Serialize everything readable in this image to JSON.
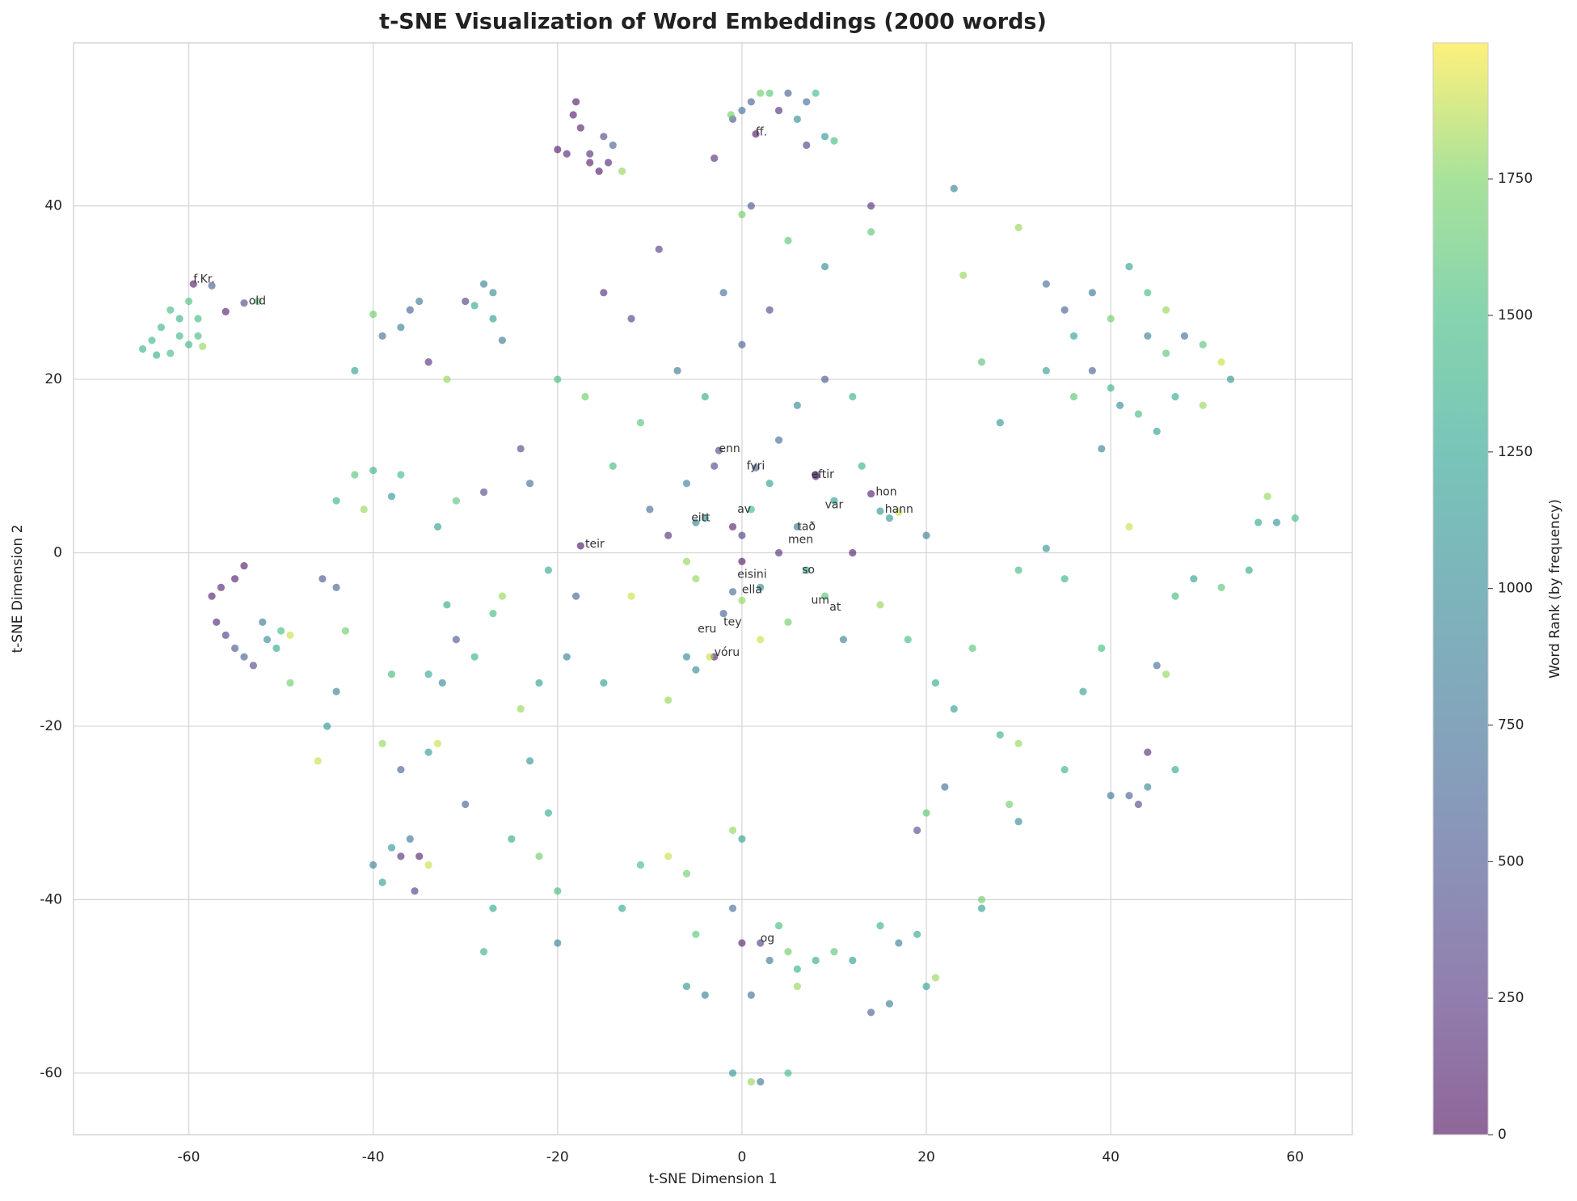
{
  "chart_data": {
    "type": "scatter",
    "title": "t-SNE Visualization of Word Embeddings (2000 words)",
    "x_label": "t-SNE Dimension 1",
    "y_label": "t-SNE Dimension 2",
    "colorbar_label": "Word Rank (by frequency)",
    "colormap": "viridis",
    "alpha": 0.6,
    "grid": true,
    "xlim": [
      -72.5,
      66.2
    ],
    "ylim": [
      -67.1,
      58.8
    ],
    "xticks": [
      -60,
      -40,
      -20,
      0,
      20,
      40,
      60
    ],
    "yticks": [
      -60,
      -40,
      -20,
      0,
      20,
      40
    ],
    "clim": [
      0,
      1999
    ],
    "cticks": [
      0,
      250,
      500,
      750,
      1000,
      1250,
      1500,
      1750
    ],
    "x": [
      -65,
      -64,
      -63,
      -62,
      -61,
      -60,
      -61,
      -62,
      -59,
      -60,
      -63.5,
      -59,
      -58.5,
      -59.5,
      -57.5,
      -56,
      -54,
      -52.5,
      -57.5,
      -56.5,
      -55,
      -54,
      -57,
      -56,
      -55,
      -54,
      -53,
      -51.5,
      -50,
      -49,
      -50.5,
      -52,
      -49,
      -46,
      -45,
      -44,
      -43,
      -44,
      -45.5,
      -44,
      -42,
      -41,
      -40,
      -38,
      -37,
      -42,
      -40,
      -39,
      -37,
      -36,
      -35,
      -34,
      -32,
      -30,
      -29,
      -28,
      -27,
      -27,
      -26,
      -38,
      -39,
      -37,
      -34,
      -33,
      -40,
      -39,
      -38,
      -37,
      -36,
      -35,
      -35.5,
      -34,
      -34,
      -32,
      -31,
      -32.5,
      -33,
      -31,
      -29,
      -27,
      -28,
      -30,
      -28,
      -27,
      -24,
      -22,
      -23,
      -21,
      -22,
      -20,
      -20,
      -25,
      -19,
      -18,
      -18,
      -18.3,
      -17.5,
      -16.5,
      -15,
      -14,
      -15.5,
      -16.5,
      -14.5,
      -20,
      -19,
      -13,
      -1,
      0,
      1,
      2,
      3,
      5,
      6,
      7,
      8,
      9,
      1.5,
      -3,
      -1.2,
      10,
      4,
      7,
      -10,
      -8,
      -6,
      -5,
      -4,
      -3,
      -2,
      -1,
      0,
      0,
      1,
      2,
      3,
      4,
      5,
      6,
      7,
      8,
      9,
      10,
      11,
      12,
      13,
      15,
      16,
      18,
      20,
      21,
      -12,
      -14,
      -15,
      -11,
      -8,
      -6,
      -3,
      2,
      4,
      6,
      9,
      12,
      -7,
      -4,
      0,
      3,
      -2,
      0,
      1,
      5,
      9,
      14,
      14,
      -12,
      -15,
      -9,
      -17,
      -20,
      -21,
      -23,
      -24,
      -26,
      -6,
      -5,
      -3.5,
      -17.5,
      -2.5,
      1.5,
      8,
      14,
      15,
      17,
      -5,
      -1,
      0,
      33,
      35,
      36,
      38,
      40,
      42,
      44,
      46,
      48,
      50,
      52,
      53,
      41,
      43,
      45,
      47,
      39,
      42,
      46,
      30,
      23,
      24,
      26,
      28,
      33,
      36,
      38,
      40,
      44,
      50,
      56,
      57,
      58,
      60,
      55,
      52,
      49,
      47,
      46,
      45,
      44,
      47,
      42,
      43,
      44,
      40,
      39,
      37,
      35,
      30,
      29,
      30,
      28,
      25,
      23,
      22,
      19,
      20,
      26,
      26,
      30,
      33,
      35,
      0,
      2,
      4,
      5,
      6,
      8,
      10,
      3,
      6,
      12,
      15,
      17,
      19,
      20,
      21,
      14,
      16,
      -1,
      1,
      -5,
      -6,
      -4,
      -13,
      -11,
      -8,
      -6,
      -1,
      0,
      -1,
      1,
      2,
      5
    ],
    "values": [
      23.5,
      24.5,
      26,
      28,
      27,
      29,
      25,
      23,
      27,
      24,
      22.8,
      25,
      23.8,
      31,
      30.8,
      27.8,
      28.8,
      29,
      -5,
      -4,
      -3,
      -1.5,
      -8,
      -9.5,
      -11,
      -12,
      -13,
      -10,
      -9,
      -9.5,
      -11,
      -8,
      -15,
      -24,
      -20,
      -16,
      -9,
      -4,
      -3,
      6,
      9,
      5,
      9.5,
      6.5,
      9,
      21,
      27.5,
      25,
      26,
      28,
      29,
      22,
      20,
      29,
      28.5,
      31,
      30,
      27,
      24.5,
      -14,
      -22,
      -25,
      -23,
      -22,
      -36,
      -38,
      -34,
      -35,
      -33,
      -35,
      -39,
      -36,
      -14,
      -6,
      -10,
      -15,
      3,
      6,
      -12,
      -7,
      7,
      -29,
      -46,
      -41,
      -18,
      -15,
      -24,
      -30,
      -35,
      -39,
      -45,
      -33,
      -12,
      -5,
      52,
      50.5,
      49,
      46,
      48,
      47,
      44,
      45,
      45,
      46.5,
      46,
      44,
      50,
      51,
      52,
      53,
      53,
      53,
      50,
      52,
      53,
      48,
      48.3,
      45.5,
      50.5,
      47.5,
      51,
      47,
      5,
      2,
      8,
      -3,
      4,
      10,
      -7,
      3,
      -1,
      2,
      5,
      -4,
      8,
      0,
      -8,
      3,
      -2,
      9,
      -5,
      6,
      -10,
      0,
      10,
      -6,
      4,
      -10,
      2,
      -15,
      -5,
      10,
      -15,
      15,
      -17,
      -12,
      -12,
      -10,
      13,
      17,
      20,
      18,
      21,
      18,
      24,
      28,
      30,
      39,
      40,
      36,
      33,
      37,
      40,
      27,
      30,
      35,
      18,
      20,
      -2,
      8,
      12,
      -5,
      -1,
      -13.5,
      -12,
      0.8,
      11.8,
      9.8,
      8.8,
      6.8,
      4.8,
      4.7,
      3.5,
      -4.5,
      -5.5,
      31,
      28,
      25,
      30,
      27,
      33,
      30,
      28,
      25,
      24,
      22,
      20,
      17,
      16,
      14,
      18,
      12,
      3,
      23,
      37.5,
      42,
      32,
      22,
      15,
      21,
      18,
      21,
      19,
      25,
      17,
      3.5,
      6.5,
      3.5,
      4,
      -2,
      -4,
      -3,
      -5,
      -14,
      -13,
      -23,
      -25,
      -28,
      -29,
      -27,
      -28,
      -11,
      -16,
      -25,
      -31,
      -29,
      -22,
      -21,
      -11,
      -18,
      -27,
      -32,
      -30,
      -40,
      -41,
      -2,
      0.5,
      -3,
      -45,
      -45,
      -43,
      -46,
      -48,
      -47,
      -46,
      -47,
      -50,
      -47,
      -43,
      -45,
      -44,
      -50,
      -49,
      -53,
      -52,
      -41,
      -51,
      -44,
      -50,
      -51,
      -41,
      -36,
      -35,
      -37,
      -32,
      -33,
      -60,
      -61,
      -61,
      -60
    ],
    "color_values": [
      1400,
      1450,
      1420,
      1500,
      1380,
      1550,
      1460,
      1480,
      1500,
      1430,
      1350,
      1500,
      1800,
      80,
      600,
      80,
      400,
      1600,
      100,
      120,
      80,
      60,
      150,
      300,
      500,
      600,
      400,
      1000,
      1500,
      1900,
      1300,
      800,
      1700,
      1900,
      1100,
      900,
      1700,
      600,
      500,
      1400,
      1600,
      1800,
      1400,
      1100,
      1500,
      1200,
      1700,
      700,
      900,
      600,
      800,
      200,
      1800,
      300,
      1300,
      900,
      1000,
      1200,
      800,
      1500,
      1800,
      600,
      1200,
      1900,
      900,
      1200,
      1100,
      200,
      800,
      100,
      300,
      1900,
      1300,
      1300,
      500,
      1000,
      1200,
      1600,
      1400,
      1500,
      400,
      600,
      1400,
      1300,
      1800,
      1200,
      1100,
      1300,
      1700,
      1500,
      900,
      1300,
      900,
      600,
      60,
      80,
      100,
      200,
      400,
      600,
      30,
      100,
      150,
      50,
      150,
      1800,
      500,
      700,
      600,
      1700,
      1600,
      600,
      1000,
      700,
      1500,
      1100,
      50,
      200,
      1700,
      1500,
      200,
      300,
      700,
      200,
      900,
      1800,
      1100,
      400,
      600,
      100,
      50,
      300,
      1500,
      1000,
      1200,
      200,
      1700,
      800,
      1300,
      300,
      1600,
      1200,
      900,
      100,
      1400,
      1800,
      1100,
      1500,
      900,
      1300,
      1900,
      1500,
      1200,
      1600,
      1800,
      1000,
      100,
      1900,
      700,
      1000,
      500,
      1400,
      800,
      1300,
      600,
      400,
      700,
      1700,
      500,
      1600,
      1000,
      1600,
      200,
      300,
      200,
      300,
      1700,
      1500,
      1300,
      700,
      400,
      1800,
      1800,
      1000,
      1900,
      50,
      400,
      600,
      200,
      100,
      1100,
      1900,
      900,
      700,
      1800,
      700,
      600,
      1200,
      800,
      1700,
      1200,
      1500,
      1800,
      700,
      1600,
      1900,
      1100,
      1000,
      1500,
      1200,
      1300,
      900,
      1900,
      1600,
      1800,
      900,
      1800,
      1600,
      1100,
      1200,
      1600,
      600,
      1400,
      900,
      1800,
      1300,
      1800,
      1100,
      1500,
      1300,
      1600,
      1200,
      1500,
      1800,
      700,
      200,
      1300,
      600,
      400,
      1000,
      800,
      1500,
      1200,
      1400,
      1000,
      1700,
      1800,
      1400,
      1600,
      1200,
      700,
      400,
      1600,
      1700,
      1200,
      1500,
      1100,
      1400,
      100,
      300,
      1500,
      1700,
      1400,
      1300,
      1600,
      800,
      1800,
      1200,
      1400,
      900,
      1300,
      1200,
      1800,
      600,
      900,
      700,
      700,
      1600,
      1100,
      900,
      1300,
      1500,
      1900,
      1700,
      1800,
      1200,
      1100,
      1800,
      800,
      1500
    ],
    "annotations": [
      {
        "text": "f.Kr.",
        "x": -59.5,
        "y": 31.5
      },
      {
        "text": "old",
        "x": -53.5,
        "y": 29
      },
      {
        "text": "ff.",
        "x": 1.5,
        "y": 48.5
      },
      {
        "text": "enn",
        "x": -2.5,
        "y": 12
      },
      {
        "text": "fyri",
        "x": 0.5,
        "y": 10
      },
      {
        "text": "eftir",
        "x": 7.5,
        "y": 9
      },
      {
        "text": "hon",
        "x": 14.5,
        "y": 7
      },
      {
        "text": "hann",
        "x": 15.5,
        "y": 5
      },
      {
        "text": "var",
        "x": 9,
        "y": 5.5
      },
      {
        "text": "av",
        "x": -0.5,
        "y": 5
      },
      {
        "text": "tað",
        "x": 6,
        "y": 3
      },
      {
        "text": "teir",
        "x": -17,
        "y": 1
      },
      {
        "text": "eitt",
        "x": -5.5,
        "y": 4
      },
      {
        "text": "men",
        "x": 5,
        "y": 1.5
      },
      {
        "text": "so",
        "x": 6.5,
        "y": -2
      },
      {
        "text": "eisini",
        "x": -0.5,
        "y": -2.5
      },
      {
        "text": "ella",
        "x": 0,
        "y": -4.3
      },
      {
        "text": "um",
        "x": 7.5,
        "y": -5.5
      },
      {
        "text": "at",
        "x": 9.5,
        "y": -6.3
      },
      {
        "text": "tey",
        "x": -2,
        "y": -8
      },
      {
        "text": "eru",
        "x": -4.8,
        "y": -8.8
      },
      {
        "text": "vóru",
        "x": -3,
        "y": -11.5
      },
      {
        "text": "og",
        "x": 2,
        "y": -44.5
      }
    ]
  }
}
